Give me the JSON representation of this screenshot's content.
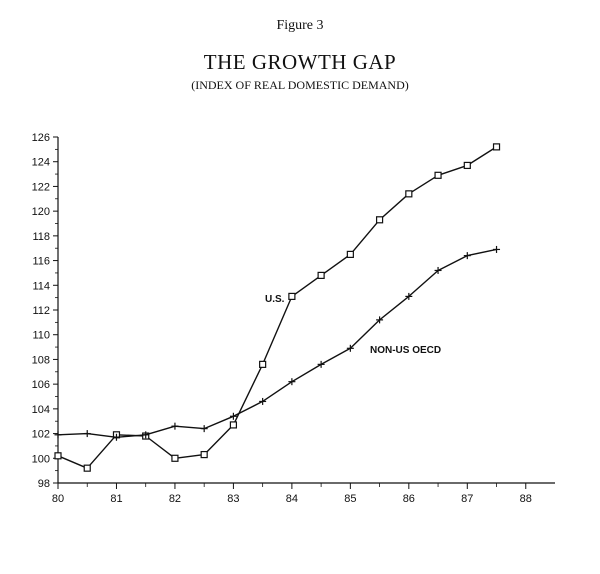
{
  "figure_label": "Figure 3",
  "chart_data": {
    "type": "line",
    "title": "THE GROWTH GAP",
    "subtitle": "(INDEX OF REAL DOMESTIC DEMAND)",
    "xlabel": "",
    "ylabel": "",
    "xlim": [
      80,
      88.5
    ],
    "ylim": [
      98,
      126
    ],
    "x_ticks": [
      "80",
      "81",
      "82",
      "83",
      "84",
      "85",
      "86",
      "87",
      "88"
    ],
    "y_ticks": [
      "98",
      "100",
      "102",
      "104",
      "106",
      "108",
      "110",
      "112",
      "114",
      "116",
      "118",
      "120",
      "122",
      "124",
      "126"
    ],
    "grid": false,
    "series": [
      {
        "name": "U.S.",
        "marker": "square",
        "x": [
          80.0,
          80.5,
          81.0,
          81.5,
          82.0,
          82.5,
          83.0,
          83.5,
          84.0,
          84.5,
          85.0,
          85.5,
          86.0,
          86.5,
          87.0,
          87.5
        ],
        "y": [
          100.2,
          99.2,
          101.9,
          101.8,
          100.0,
          100.3,
          102.7,
          107.6,
          113.1,
          114.8,
          116.5,
          119.3,
          121.4,
          122.9,
          123.7,
          125.2
        ]
      },
      {
        "name": "NON-US OECD",
        "marker": "plus",
        "x": [
          80.0,
          80.5,
          81.0,
          81.5,
          82.0,
          82.5,
          83.0,
          83.5,
          84.0,
          84.5,
          85.0,
          85.5,
          86.0,
          86.5,
          87.0,
          87.5
        ],
        "y": [
          101.9,
          102.0,
          101.7,
          101.9,
          102.6,
          102.4,
          103.4,
          104.6,
          106.2,
          107.6,
          108.9,
          111.2,
          113.1,
          115.2,
          116.4,
          116.9
        ]
      }
    ]
  }
}
